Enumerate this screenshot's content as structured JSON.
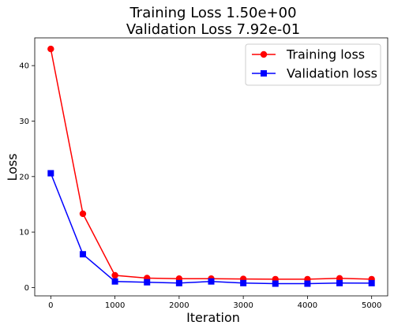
{
  "chart_data": {
    "type": "line",
    "title_lines": [
      "Training Loss 1.50e+00",
      "Validation Loss 7.92e-01"
    ],
    "xlabel": "Iteration",
    "ylabel": "Loss",
    "xlim": [
      -250,
      5250
    ],
    "ylim": [
      -1.5,
      45
    ],
    "xticks": [
      0,
      1000,
      2000,
      3000,
      4000,
      5000
    ],
    "yticks": [
      0,
      10,
      20,
      30,
      40
    ],
    "grid": false,
    "legend_position": "top-right",
    "x": [
      0,
      500,
      1000,
      1500,
      2000,
      2500,
      3000,
      3500,
      4000,
      4500,
      5000
    ],
    "series": [
      {
        "name": "Training loss",
        "color": "#ff0000",
        "marker": "circle",
        "values": [
          43.0,
          13.3,
          2.2,
          1.7,
          1.6,
          1.6,
          1.55,
          1.5,
          1.5,
          1.65,
          1.5
        ]
      },
      {
        "name": "Validation loss",
        "color": "#0000ff",
        "marker": "square",
        "values": [
          20.6,
          6.0,
          1.1,
          0.95,
          0.8,
          1.1,
          0.8,
          0.7,
          0.7,
          0.8,
          0.79
        ]
      }
    ]
  }
}
